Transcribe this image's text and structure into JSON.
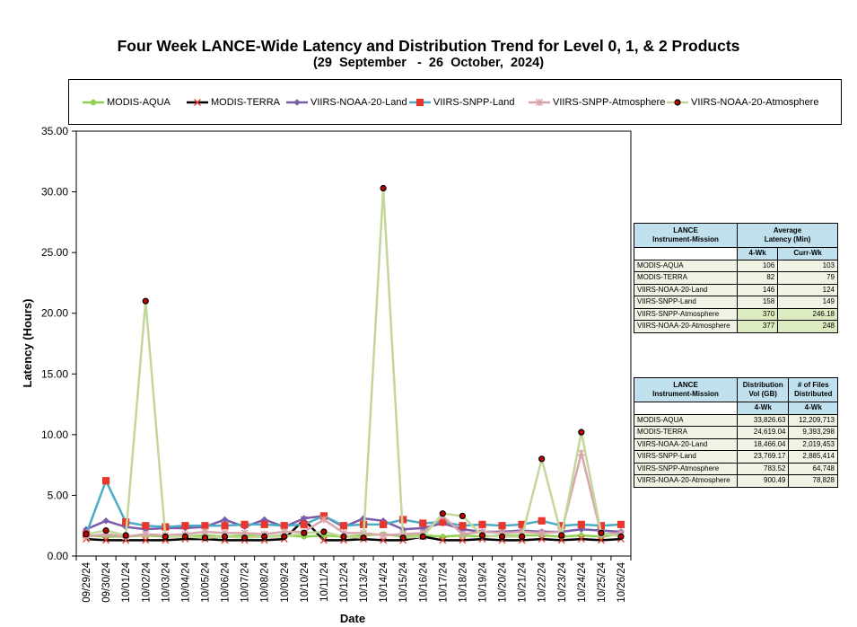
{
  "chart_data": {
    "type": "line",
    "title": "Four Week LANCE-Wide Latency and Distribution Trend for Level 0, 1, & 2 Products",
    "subtitle": "(29  September   -  26  October,  2024)",
    "xlabel": "Date",
    "ylabel": "Latency (Hours)",
    "ylim": [
      0,
      35
    ],
    "yticks": [
      "0.00",
      "5.00",
      "10.00",
      "15.00",
      "20.00",
      "25.00",
      "30.00",
      "35.00"
    ],
    "grid": false,
    "legend_position": "top",
    "x": [
      "09/29/24",
      "09/30/24",
      "10/01/24",
      "10/02/24",
      "10/03/24",
      "10/04/24",
      "10/05/24",
      "10/06/24",
      "10/07/24",
      "10/08/24",
      "10/09/24",
      "10/10/24",
      "10/11/24",
      "10/12/24",
      "10/13/24",
      "10/14/24",
      "10/15/24",
      "10/16/24",
      "10/17/24",
      "10/18/24",
      "10/19/24",
      "10/20/24",
      "10/21/24",
      "10/22/24",
      "10/23/24",
      "10/24/24",
      "10/25/24",
      "10/26/24"
    ],
    "series": [
      {
        "name": "MODIS-AQUA",
        "color": "#92d050",
        "marker": "circle",
        "values": [
          1.7,
          1.6,
          1.6,
          1.7,
          1.6,
          1.6,
          1.7,
          1.6,
          1.7,
          1.6,
          1.7,
          1.6,
          1.7,
          1.6,
          1.7,
          1.8,
          1.6,
          1.7,
          1.6,
          1.7,
          1.6,
          1.7,
          1.7,
          1.7,
          1.6,
          1.7,
          1.6,
          1.8
        ]
      },
      {
        "name": "MODIS-TERRA",
        "color": "#000000",
        "marker": "x",
        "values": [
          1.4,
          1.3,
          1.3,
          1.3,
          1.3,
          1.4,
          1.4,
          1.3,
          1.3,
          1.3,
          1.4,
          3.0,
          1.3,
          1.3,
          1.4,
          1.3,
          1.3,
          1.6,
          1.3,
          1.3,
          1.4,
          1.3,
          1.3,
          1.4,
          1.3,
          1.4,
          1.3,
          1.4
        ]
      },
      {
        "name": "VIIRS-NOAA-20-Land",
        "color": "#7a5ca8",
        "marker": "diamond",
        "values": [
          2.2,
          2.9,
          2.4,
          2.2,
          2.3,
          2.3,
          2.4,
          3.0,
          2.4,
          3.0,
          2.4,
          3.1,
          3.3,
          2.4,
          3.1,
          2.9,
          2.2,
          2.3,
          2.7,
          2.2,
          2.0,
          2.0,
          2.1,
          2.0,
          2.0,
          2.2,
          2.1,
          2.0
        ]
      },
      {
        "name": "VIIRS-SNPP-Land",
        "color": "#4bacc6",
        "marker": "square",
        "values": [
          1.8,
          6.2,
          2.8,
          2.5,
          2.4,
          2.5,
          2.5,
          2.5,
          2.6,
          2.6,
          2.5,
          2.6,
          3.3,
          2.5,
          2.6,
          2.6,
          3.0,
          2.7,
          2.8,
          2.5,
          2.6,
          2.5,
          2.6,
          2.9,
          2.5,
          2.6,
          2.5,
          2.6
        ]
      },
      {
        "name": "VIIRS-SNPP-Atmosphere",
        "color": "#d9a5ad",
        "marker": "star",
        "values": [
          1.6,
          1.8,
          1.6,
          1.8,
          1.7,
          1.8,
          2.0,
          1.9,
          1.9,
          1.8,
          2.0,
          2.0,
          3.0,
          1.9,
          1.9,
          1.7,
          1.8,
          1.9,
          3.3,
          1.8,
          2.0,
          1.9,
          2.0,
          1.9,
          2.0,
          8.5,
          1.8,
          1.9
        ]
      },
      {
        "name": "VIIRS-NOAA-20-Atmosphere",
        "color": "#c4d79b",
        "marker": "dot",
        "values": [
          1.8,
          2.1,
          1.7,
          21.0,
          1.6,
          1.6,
          1.5,
          1.6,
          1.5,
          1.6,
          1.6,
          1.9,
          2.0,
          1.6,
          1.5,
          30.3,
          1.5,
          1.6,
          3.5,
          3.3,
          1.7,
          1.6,
          1.6,
          8.0,
          1.7,
          10.2,
          1.9,
          1.6
        ]
      }
    ]
  },
  "latency_table": {
    "header_col1": "LANCE\nInstrument-Mission",
    "header_col2": "Average\nLatency (Min)",
    "sub_a": "4-Wk",
    "sub_b": "Curr-Wk",
    "rows": [
      {
        "name": "MODIS-AQUA",
        "a": "106",
        "b": "103"
      },
      {
        "name": "MODIS-TERRA",
        "a": "82",
        "b": "79"
      },
      {
        "name": "VIIRS-NOAA-20-Land",
        "a": "146",
        "b": "124"
      },
      {
        "name": "VIIRS-SNPP-Land",
        "a": "158",
        "b": "149"
      },
      {
        "name": "VIIRS-SNPP-Atmosphere",
        "a": "370",
        "b": "246.18"
      },
      {
        "name": "VIIRS-NOAA-20-Atmosphere",
        "a": "377",
        "b": "248"
      }
    ]
  },
  "distribution_table": {
    "header_col1": "LANCE\nInstrument-Mission",
    "header_col2": "Distribution\nVol (GB)",
    "header_col3": "# of Files\nDistributed",
    "sub_a": "4-Wk",
    "sub_b": "4-Wk",
    "rows": [
      {
        "name": "MODIS-AQUA",
        "a": "33,826.63",
        "b": "12,209,713"
      },
      {
        "name": "MODIS-TERRA",
        "a": "24,619.04",
        "b": "9,393,298"
      },
      {
        "name": "VIIRS-NOAA-20-Land",
        "a": "18,466.04",
        "b": "2,019,453"
      },
      {
        "name": "VIIRS-SNPP-Land",
        "a": "23,769.17",
        "b": "2,885,414"
      },
      {
        "name": "VIIRS-SNPP-Atmosphere",
        "a": "783.52",
        "b": "64,748"
      },
      {
        "name": "VIIRS-NOAA-20-Atmosphere",
        "a": "900.49",
        "b": "78,828"
      }
    ]
  }
}
